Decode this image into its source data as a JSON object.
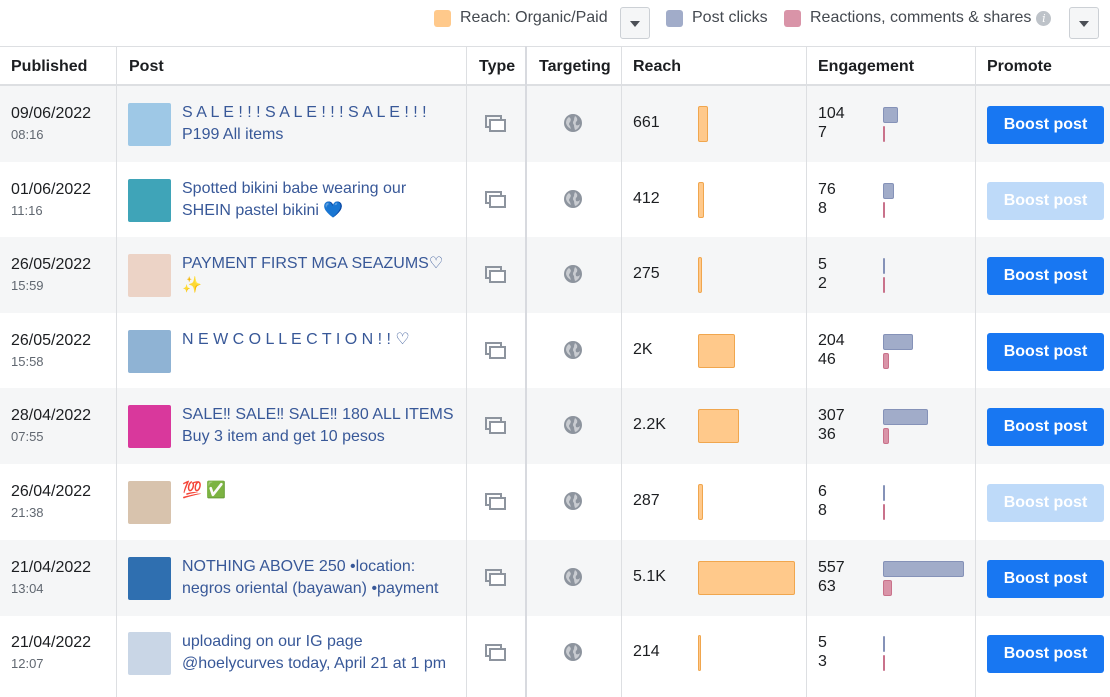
{
  "legend": {
    "reach_label": "Reach: Organic/Paid",
    "clicks_label": "Post clicks",
    "reactions_label": "Reactions, comments & shares",
    "info_glyph": "i",
    "colors": {
      "reach": "#ffc98b",
      "clicks": "#a1acc9",
      "reactions": "#d994a8"
    }
  },
  "columns": {
    "published": "Published",
    "post": "Post",
    "type": "Type",
    "targeting": "Targeting",
    "reach": "Reach",
    "engagement": "Engagement",
    "promote": "Promote"
  },
  "rows": [
    {
      "date": "09/06/2022",
      "time": "08:16",
      "post": "S A L E ! ! ! S A L E ! ! ! S A L E ! ! ! P199 All items",
      "reach": "661",
      "reach_share": 0.1,
      "clicks": "104",
      "reactions": "7",
      "clicks_share": 0.18,
      "reactions_share": 0.02,
      "boost": "Boost post",
      "boost_enabled": true,
      "thumb_color": "#9ec8e6"
    },
    {
      "date": "01/06/2022",
      "time": "11:16",
      "post": "Spotted bikini babe wearing our SHEIN pastel bikini 💙",
      "reach": "412",
      "reach_share": 0.06,
      "clicks": "76",
      "reactions": "8",
      "clicks_share": 0.13,
      "reactions_share": 0.02,
      "boost": "Boost post",
      "boost_enabled": false,
      "thumb_color": "#3fa4b8"
    },
    {
      "date": "26/05/2022",
      "time": "15:59",
      "post": "PAYMENT FIRST MGA SEAZUMS♡ ✨",
      "reach": "275",
      "reach_share": 0.04,
      "clicks": "5",
      "reactions": "2",
      "clicks_share": 0.01,
      "reactions_share": 0.01,
      "boost": "Boost post",
      "boost_enabled": true,
      "thumb_color": "#ecd3c6"
    },
    {
      "date": "26/05/2022",
      "time": "15:58",
      "post": "N E W C O L L E C T I O N ! ! ♡",
      "reach": "2K",
      "reach_share": 0.38,
      "clicks": "204",
      "reactions": "46",
      "clicks_share": 0.37,
      "reactions_share": 0.08,
      "boost": "Boost post",
      "boost_enabled": true,
      "thumb_color": "#8fb3d4"
    },
    {
      "date": "28/04/2022",
      "time": "07:55",
      "post": "SALE‼ SALE‼ SALE‼ 180 ALL ITEMS Buy 3 item and get 10 pesos",
      "reach": "2.2K",
      "reach_share": 0.42,
      "clicks": "307",
      "reactions": "36",
      "clicks_share": 0.55,
      "reactions_share": 0.07,
      "boost": "Boost post",
      "boost_enabled": true,
      "thumb_color": "#d9389c"
    },
    {
      "date": "26/04/2022",
      "time": "21:38",
      "post": "💯 ✅",
      "reach": "287",
      "reach_share": 0.05,
      "clicks": "6",
      "reactions": "8",
      "clicks_share": 0.01,
      "reactions_share": 0.02,
      "boost": "Boost post",
      "boost_enabled": false,
      "thumb_color": "#d8c3ad"
    },
    {
      "date": "21/04/2022",
      "time": "13:04",
      "post": "NOTHING ABOVE 250 •location: negros oriental (bayawan) •payment",
      "reach": "5.1K",
      "reach_share": 1.0,
      "clicks": "557",
      "reactions": "63",
      "clicks_share": 1.0,
      "reactions_share": 0.11,
      "boost": "Boost post",
      "boost_enabled": true,
      "thumb_color": "#2f6fb0"
    },
    {
      "date": "21/04/2022",
      "time": "12:07",
      "post": "uploading on our IG page @hoelycurves today, April 21 at 1 pm",
      "reach": "214",
      "reach_share": 0.03,
      "clicks": "5",
      "reactions": "3",
      "clicks_share": 0.01,
      "reactions_share": 0.01,
      "boost": "Boost post",
      "boost_enabled": true,
      "thumb_color": "#c9d6e6"
    }
  ]
}
